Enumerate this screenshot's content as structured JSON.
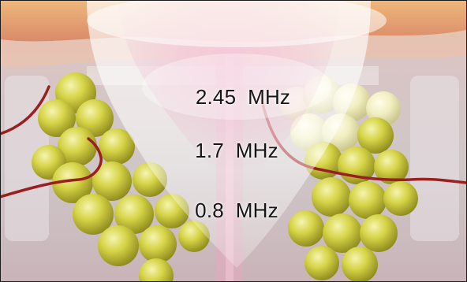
{
  "labels": {
    "freq_high": "2.45  MHz",
    "freq_mid": "1.7  MHz",
    "freq_low": "0.8  MHz"
  },
  "colors": {
    "fat_cell": "#c9c637",
    "fat_cell_highlight": "#f4f2a8",
    "vessel": "#9a1f1f",
    "skin_top": "#e8a86a",
    "tissue_pink": "#e9a3b8",
    "beam_white": "#ffffff",
    "border": "#1a1a1a"
  }
}
